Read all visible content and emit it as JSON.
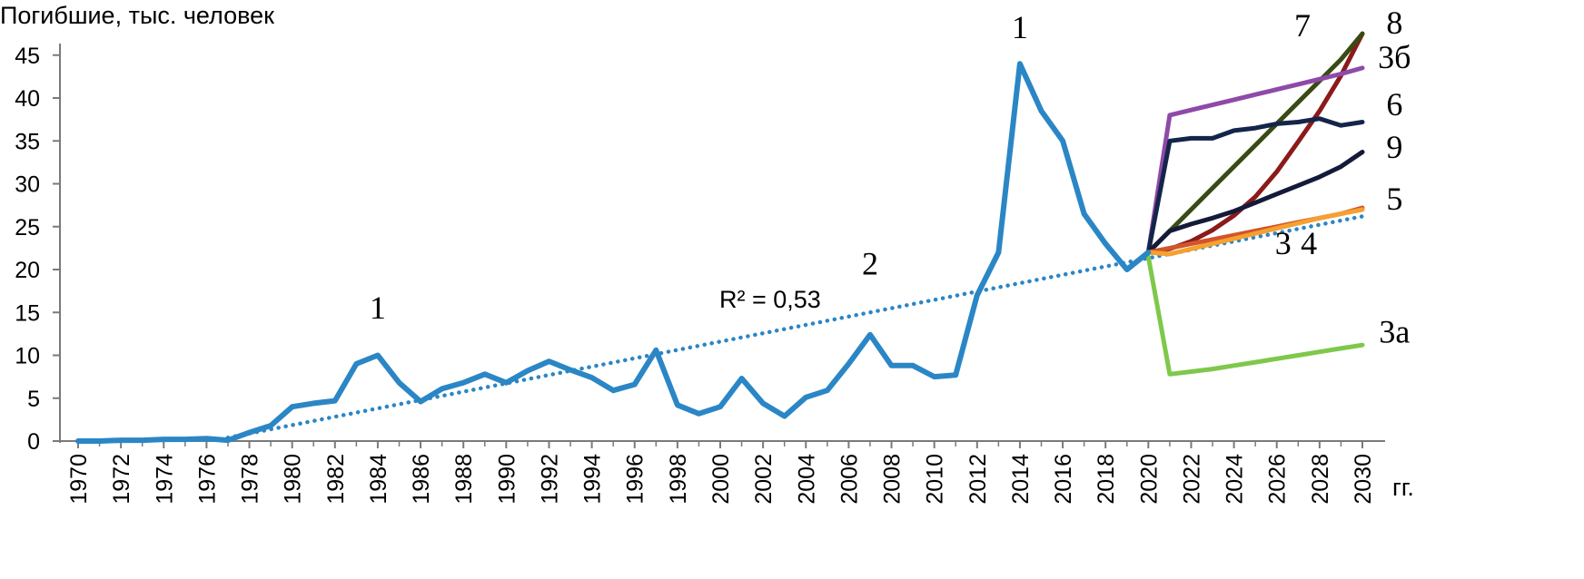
{
  "chart_data": {
    "type": "line",
    "ylabel": "Погибшие, тыс. человек",
    "x_unit": "гг.",
    "xlim": [
      1970,
      2030
    ],
    "ylim": [
      0,
      47
    ],
    "yticks": [
      0,
      5,
      10,
      15,
      20,
      25,
      30,
      35,
      40,
      45
    ],
    "xticks": [
      1970,
      1972,
      1974,
      1976,
      1978,
      1980,
      1982,
      1984,
      1986,
      1988,
      1990,
      1992,
      1994,
      1996,
      1998,
      2000,
      2002,
      2004,
      2006,
      2008,
      2010,
      2012,
      2014,
      2016,
      2018,
      2020,
      2022,
      2024,
      2026,
      2028,
      2030
    ],
    "grid": false,
    "series": [
      {
        "color": "#2b86c5",
        "x": [
          1970,
          1971,
          1972,
          1973,
          1974,
          1975,
          1976,
          1977,
          1978,
          1979,
          1980,
          1981,
          1982,
          1983,
          1984,
          1985,
          1986,
          1987,
          1988,
          1989,
          1990,
          1991,
          1992,
          1993,
          1994,
          1995,
          1996,
          1997,
          1998,
          1999,
          2000,
          2001,
          2002,
          2003,
          2004,
          2005,
          2006,
          2007,
          2008,
          2009,
          2010,
          2011,
          2012,
          2013,
          2014,
          2015,
          2016,
          2017,
          2018,
          2019,
          2020
        ],
        "values": [
          0,
          0,
          0.1,
          0.1,
          0.2,
          0.2,
          0.3,
          0.1,
          1.0,
          1.8,
          4.0,
          4.4,
          4.7,
          9.0,
          10.0,
          6.8,
          4.6,
          6.1,
          6.8,
          7.8,
          6.8,
          8.2,
          9.3,
          8.3,
          7.4,
          5.9,
          6.6,
          10.6,
          4.2,
          3.2,
          4.0,
          7.3,
          4.4,
          2.9,
          5.1,
          5.9,
          9.0,
          12.4,
          8.8,
          8.8,
          7.5,
          7.7,
          17.0,
          22.0,
          44.0,
          38.5,
          35.0,
          26.5,
          23.0,
          20.0,
          22.0
        ]
      },
      {
        "label": "8",
        "color": "#8b1a1a",
        "x": [
          2020,
          2021,
          2022,
          2023,
          2024,
          2025,
          2026,
          2027,
          2028,
          2029,
          2030
        ],
        "values": [
          22.0,
          22.4,
          23.3,
          24.6,
          26.3,
          28.5,
          31.4,
          34.9,
          38.5,
          42.6,
          47.5
        ]
      },
      {
        "label": "7",
        "color": "#3a4a14",
        "x": [
          2020,
          2021,
          2022,
          2023,
          2024,
          2025,
          2026,
          2027,
          2028,
          2029,
          2030
        ],
        "values": [
          22.0,
          24.5,
          27.0,
          29.5,
          32.0,
          34.5,
          37.0,
          39.5,
          42.0,
          44.5,
          47.5
        ]
      },
      {
        "label": "3б",
        "color": "#8e4aa8",
        "x": [
          2020,
          2021,
          2022,
          2023,
          2024,
          2025,
          2026,
          2027,
          2028,
          2029,
          2030
        ],
        "values": [
          22.0,
          38.0,
          38.6,
          39.2,
          39.8,
          40.4,
          41.0,
          41.6,
          42.2,
          42.8,
          43.5
        ]
      },
      {
        "label": "6",
        "color": "#14254a",
        "x": [
          2020,
          2021,
          2022,
          2023,
          2024,
          2025,
          2026,
          2027,
          2028,
          2029,
          2030
        ],
        "values": [
          22.0,
          35.0,
          35.3,
          35.3,
          36.2,
          36.5,
          37.0,
          37.2,
          37.6,
          36.8,
          37.2
        ]
      },
      {
        "label": "9",
        "color": "#141a3a",
        "x": [
          2020,
          2021,
          2022,
          2023,
          2024,
          2025,
          2026,
          2027,
          2028,
          2029,
          2030
        ],
        "values": [
          22.0,
          24.5,
          25.3,
          26.0,
          26.8,
          27.8,
          28.8,
          29.8,
          30.8,
          32.0,
          33.7
        ]
      },
      {
        "label": "5",
        "color": "#d2542a",
        "x": [
          2020,
          2021,
          2022,
          2023,
          2024,
          2025,
          2026,
          2027,
          2028,
          2029,
          2030
        ],
        "values": [
          22.0,
          22.5,
          23.0,
          23.5,
          24.0,
          24.5,
          25.0,
          25.5,
          26.0,
          26.5,
          27.2
        ]
      },
      {
        "label": "4",
        "color": "#f5a030",
        "x": [
          2020,
          2021,
          2022,
          2023,
          2024,
          2025,
          2026,
          2027,
          2028,
          2029,
          2030
        ],
        "values": [
          22.0,
          21.8,
          22.4,
          23.0,
          23.6,
          24.2,
          24.8,
          25.4,
          26.0,
          26.5,
          27.0
        ]
      },
      {
        "label": "3а",
        "color": "#7ec84a",
        "x": [
          2020,
          2021,
          2022,
          2023,
          2024,
          2025,
          2026,
          2027,
          2028,
          2029,
          2030
        ],
        "values": [
          21.5,
          7.8,
          8.1,
          8.4,
          8.8,
          9.2,
          9.6,
          10.0,
          10.4,
          10.8,
          11.2
        ]
      }
    ],
    "trendline": {
      "color": "#2b86c5",
      "style": "dotted",
      "x": [
        1977,
        2030
      ],
      "values": [
        0.4,
        26.2
      ],
      "annotation": "R² = 0,53"
    },
    "annotations": [
      {
        "text": "1",
        "x": 1984,
        "y": 14.3
      },
      {
        "text": "1",
        "x": 2014,
        "y": 47.0
      },
      {
        "text": "2",
        "x": 2007,
        "y": 19.4
      },
      {
        "text": "3",
        "x": 2026.3,
        "y": 21.8
      },
      {
        "text": "4",
        "x": 2027.5,
        "y": 21.8
      },
      {
        "text": "7",
        "x": 2027.2,
        "y": 47.2
      },
      {
        "text": "8",
        "x": 2031.5,
        "y": 47.5
      },
      {
        "text": "3б",
        "x": 2031.5,
        "y": 43.5
      },
      {
        "text": "6",
        "x": 2031.5,
        "y": 38.0
      },
      {
        "text": "9",
        "x": 2031.5,
        "y": 33.0
      },
      {
        "text": "5",
        "x": 2031.5,
        "y": 27.0
      },
      {
        "text": "3а",
        "x": 2031.5,
        "y": 11.5
      }
    ]
  }
}
